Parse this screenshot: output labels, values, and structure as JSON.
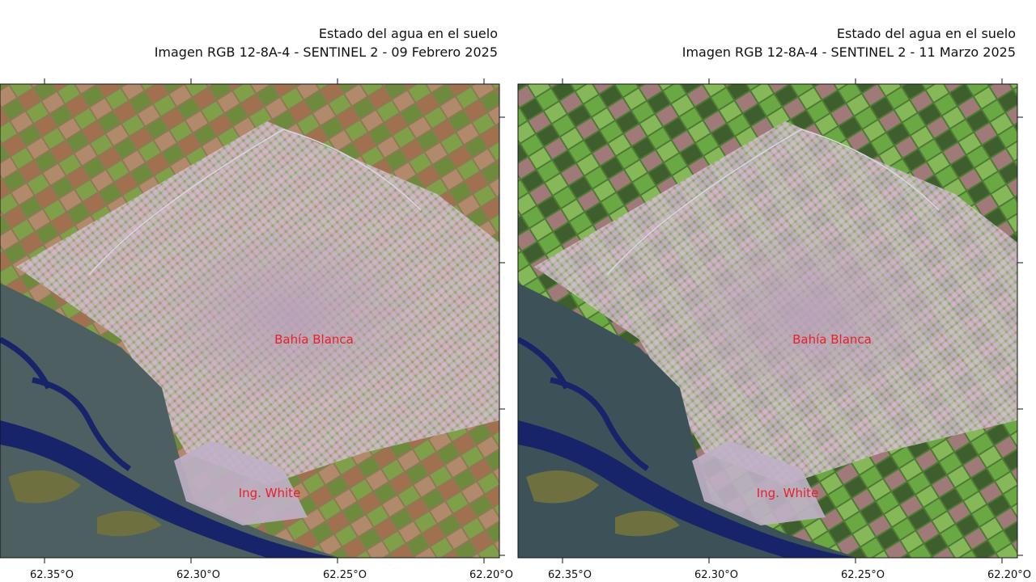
{
  "panels": [
    {
      "title_lines": [
        "Estado del agua en el suelo",
        "Imagen RGB 12-8A-4 - SENTINEL 2 - 09 Febrero 2025"
      ],
      "x_tick_labels": [
        "62.35°O",
        "62.30°O",
        "62.25°O",
        "62.20°O"
      ],
      "places": [
        "Bahía Blanca",
        "Ing. White"
      ]
    },
    {
      "title_lines": [
        "Estado del agua en el suelo",
        "Imagen RGB 12-8A-4 - SENTINEL 2 - 11 Marzo 2025"
      ],
      "x_tick_labels": [
        "62.35°O",
        "62.30°O",
        "62.25°O",
        "62.20°O"
      ],
      "places": [
        "Bahía Blanca",
        "Ing. White"
      ]
    }
  ]
}
